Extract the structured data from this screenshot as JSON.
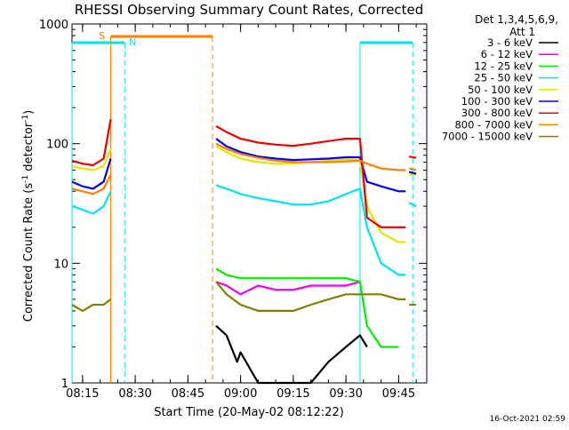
{
  "chart_data": {
    "type": "line",
    "title": "RHESSI Observing Summary Count Rates, Corrected",
    "xlabel": "Start Time (20-May-02 08:12:22)",
    "ylabel_prefix": "Corrected Count Rate (s",
    "ylabel_sup": "-1",
    "ylabel_mid": " detector",
    "ylabel_sup2": "-1",
    "ylabel_suffix": ")",
    "y_scale": "log",
    "ylim": [
      1,
      1000
    ],
    "xlim": [
      "08:12",
      "09:53"
    ],
    "x_ticks": [
      "08:15",
      "08:30",
      "08:45",
      "09:00",
      "09:15",
      "09:30",
      "09:45"
    ],
    "y_ticks": [
      "1",
      "10",
      "100",
      "1000"
    ],
    "timestamp": "16-Oct-2021 02:59",
    "legend_header": [
      "Det 1,3,4,5,6,9,",
      "Att 1"
    ],
    "flags": {
      "saa": {
        "label": "S",
        "color": "#ff7f00",
        "from": "08:23",
        "to": "08:52"
      },
      "night": {
        "label": "N",
        "color": "#00e5ee",
        "intervals": [
          [
            "08:12",
            "08:27"
          ],
          [
            "09:34",
            "09:49"
          ]
        ]
      }
    },
    "series": [
      {
        "name": "3 - 6 keV",
        "color": "#000000",
        "segments": [
          {
            "x": [
              "08:53",
              "08:56",
              "08:59",
              "09:00",
              "09:05",
              "09:10",
              "09:15",
              "09:20",
              "09:25",
              "09:30",
              "09:34",
              "09:36"
            ],
            "values": [
              3.0,
              2.5,
              1.5,
              1.8,
              1.0,
              1.0,
              1.0,
              1.0,
              1.5,
              2.0,
              2.5,
              2.0
            ]
          }
        ]
      },
      {
        "name": "6 - 12 keV",
        "color": "#ee00ee",
        "segments": [
          {
            "x": [
              "08:53",
              "08:56",
              "09:00",
              "09:05",
              "09:10",
              "09:15",
              "09:20",
              "09:25",
              "09:30",
              "09:34"
            ],
            "values": [
              7.0,
              6.5,
              5.5,
              6.5,
              6.0,
              6.0,
              6.5,
              6.5,
              6.5,
              7.0
            ]
          }
        ]
      },
      {
        "name": "12 - 25 keV",
        "color": "#00ee00",
        "segments": [
          {
            "x": [
              "08:53",
              "08:56",
              "09:00",
              "09:05",
              "09:10",
              "09:15",
              "09:20",
              "09:25",
              "09:30",
              "09:34",
              "09:36",
              "09:40",
              "09:45"
            ],
            "values": [
              9.0,
              8.0,
              7.5,
              7.5,
              7.5,
              7.5,
              7.5,
              7.5,
              7.5,
              7.0,
              3.0,
              2.0,
              2.0
            ]
          }
        ]
      },
      {
        "name": "25 - 50 keV",
        "color": "#00e5ee",
        "segments": [
          {
            "x": [
              "08:12",
              "08:15",
              "08:18",
              "08:21",
              "08:23"
            ],
            "values": [
              30,
              28,
              26,
              30,
              40
            ]
          },
          {
            "x": [
              "08:53",
              "08:56",
              "09:00",
              "09:05",
              "09:10",
              "09:15",
              "09:20",
              "09:25",
              "09:30",
              "09:34",
              "09:36",
              "09:40",
              "09:45",
              "09:47"
            ],
            "values": [
              45,
              42,
              38,
              35,
              33,
              31,
              31,
              33,
              38,
              42,
              20,
              10,
              8,
              8
            ]
          },
          {
            "x": [
              "09:48",
              "09:50"
            ],
            "values": [
              32,
              30
            ]
          }
        ]
      },
      {
        "name": "50 - 100 keV",
        "color": "#e5e500",
        "segments": [
          {
            "x": [
              "08:12",
              "08:15",
              "08:18",
              "08:21",
              "08:23"
            ],
            "values": [
              65,
              62,
              60,
              65,
              90
            ]
          },
          {
            "x": [
              "08:53",
              "08:56",
              "09:00",
              "09:05",
              "09:10",
              "09:15",
              "09:20",
              "09:25",
              "09:30",
              "09:34",
              "09:36",
              "09:40",
              "09:45",
              "09:47"
            ],
            "values": [
              95,
              85,
              75,
              70,
              68,
              68,
              70,
              72,
              74,
              73,
              30,
              18,
              15,
              15
            ]
          },
          {
            "x": [
              "09:48",
              "09:50"
            ],
            "values": [
              55,
              55
            ]
          }
        ]
      },
      {
        "name": "100 - 300 keV",
        "color": "#0000ee",
        "segments": [
          {
            "x": [
              "08:12",
              "08:15",
              "08:18",
              "08:21",
              "08:23"
            ],
            "values": [
              48,
              44,
              42,
              48,
              75
            ]
          },
          {
            "x": [
              "08:53",
              "08:56",
              "09:00",
              "09:05",
              "09:10",
              "09:15",
              "09:20",
              "09:25",
              "09:30",
              "09:34",
              "09:36",
              "09:40",
              "09:45",
              "09:47"
            ],
            "values": [
              110,
              95,
              85,
              78,
              75,
              73,
              74,
              75,
              77,
              77,
              48,
              44,
              40,
              40
            ]
          },
          {
            "x": [
              "09:48",
              "09:50"
            ],
            "values": [
              58,
              56
            ]
          }
        ]
      },
      {
        "name": "300 - 800 keV",
        "color": "#ee0000",
        "segments": [
          {
            "x": [
              "08:12",
              "08:15",
              "08:18",
              "08:21",
              "08:23"
            ],
            "values": [
              72,
              68,
              66,
              75,
              160
            ]
          },
          {
            "x": [
              "08:53",
              "08:56",
              "09:00",
              "09:05",
              "09:10",
              "09:15",
              "09:20",
              "09:25",
              "09:30",
              "09:34",
              "09:36",
              "09:40",
              "09:45",
              "09:47"
            ],
            "values": [
              140,
              125,
              110,
              102,
              98,
              96,
              100,
              105,
              110,
              110,
              24,
              20,
              20,
              20
            ]
          },
          {
            "x": [
              "09:48",
              "09:50"
            ],
            "values": [
              78,
              76
            ]
          }
        ]
      },
      {
        "name": "800 - 7000 keV",
        "color": "#ff7f00",
        "segments": [
          {
            "x": [
              "08:12",
              "08:15",
              "08:18",
              "08:21",
              "08:23"
            ],
            "values": [
              42,
              40,
              38,
              42,
              55
            ]
          },
          {
            "x": [
              "08:53",
              "08:56",
              "09:00",
              "09:05",
              "09:10",
              "09:15",
              "09:20",
              "09:25",
              "09:30",
              "09:34",
              "09:36",
              "09:40",
              "09:45",
              "09:47"
            ],
            "values": [
              100,
              90,
              82,
              76,
              72,
              70,
              70,
              70,
              71,
              72,
              68,
              62,
              60,
              60
            ]
          },
          {
            "x": [
              "09:48",
              "09:50"
            ],
            "values": [
              62,
              60
            ]
          }
        ]
      },
      {
        "name": "7000 - 15000 keV",
        "color": "#808000",
        "segments": [
          {
            "x": [
              "08:12",
              "08:15",
              "08:18",
              "08:21",
              "08:23"
            ],
            "values": [
              4.5,
              4.0,
              4.5,
              4.5,
              5.0
            ]
          },
          {
            "x": [
              "08:53",
              "08:56",
              "09:00",
              "09:05",
              "09:10",
              "09:15",
              "09:20",
              "09:25",
              "09:30",
              "09:34",
              "09:36",
              "09:40",
              "09:45",
              "09:47"
            ],
            "values": [
              7.0,
              5.5,
              4.5,
              4.0,
              4.0,
              4.0,
              4.5,
              5.0,
              5.5,
              5.5,
              5.5,
              5.5,
              5.0,
              5.0
            ]
          },
          {
            "x": [
              "09:48",
              "09:50"
            ],
            "values": [
              4.5,
              4.5
            ]
          }
        ]
      }
    ]
  }
}
